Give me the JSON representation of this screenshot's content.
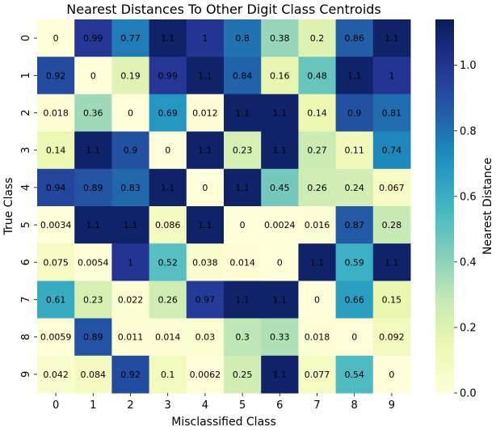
{
  "chart_data": {
    "type": "heatmap",
    "title": "Nearest Distances To Other Digit Class Centroids",
    "xlabel": "Misclassified Class",
    "ylabel": "True Class",
    "x_ticks": [
      "0",
      "1",
      "2",
      "3",
      "4",
      "5",
      "6",
      "7",
      "8",
      "9"
    ],
    "y_ticks": [
      "0",
      "1",
      "2",
      "3",
      "4",
      "5",
      "6",
      "7",
      "8",
      "9"
    ],
    "colorbar_label": "Nearest Distance",
    "colorbar_ticks": [
      "0.0",
      "0.2",
      "0.4",
      "0.6",
      "0.8",
      "1.0"
    ],
    "colorbar_range": [
      0,
      1.14
    ],
    "colormap": "YlGnBu",
    "values": [
      [
        0,
        0.99,
        0.77,
        1.1,
        1,
        0.8,
        0.38,
        0.2,
        0.86,
        1.1
      ],
      [
        0.92,
        0,
        0.19,
        0.99,
        1.1,
        0.84,
        0.16,
        0.48,
        1.1,
        1
      ],
      [
        0.018,
        0.36,
        0,
        0.69,
        0.012,
        1.1,
        1.1,
        0.14,
        0.9,
        0.81
      ],
      [
        0.14,
        1.1,
        0.9,
        0,
        1.1,
        0.23,
        1.1,
        0.27,
        0.11,
        0.74
      ],
      [
        0.94,
        0.89,
        0.83,
        1.1,
        0,
        1.1,
        0.45,
        0.26,
        0.24,
        0.067
      ],
      [
        0.0034,
        1.1,
        1.1,
        0.086,
        1.1,
        0,
        0.0024,
        0.016,
        0.87,
        0.28
      ],
      [
        0.075,
        0.0054,
        1,
        0.52,
        0.038,
        0.014,
        0,
        1.1,
        0.59,
        1.1
      ],
      [
        0.61,
        0.23,
        0.022,
        0.26,
        0.97,
        1.1,
        1.1,
        0,
        0.66,
        0.15
      ],
      [
        0.0059,
        0.89,
        0.011,
        0.014,
        0.03,
        0.3,
        0.33,
        0.018,
        0,
        0.092
      ],
      [
        0.042,
        0.084,
        0.92,
        0.1,
        0.0062,
        0.25,
        1.1,
        0.077,
        0.54,
        0
      ]
    ],
    "grid": false
  }
}
